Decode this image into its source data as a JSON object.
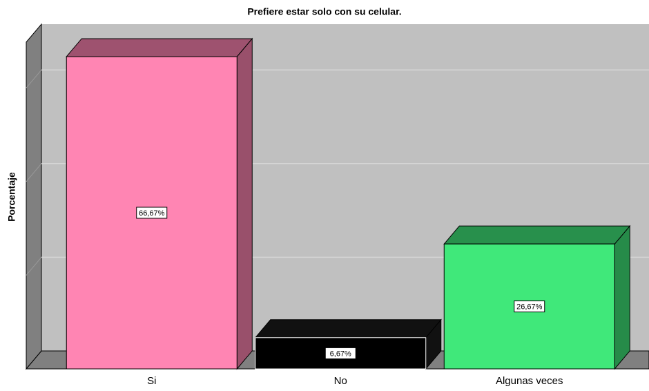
{
  "chart_data": {
    "type": "bar3d",
    "title": "Prefiere estar solo con su celular.",
    "y_label": "Porcentaje",
    "categories": [
      "Si",
      "No",
      "Algunas veces"
    ],
    "values": [
      66.67,
      6.67,
      26.67
    ],
    "value_labels": [
      "66,67%",
      "6,67%",
      "26,67%"
    ],
    "colors": [
      "#ff85b3",
      "#000000",
      "#40e87a"
    ],
    "ylim": [
      0,
      70
    ],
    "yticks": [
      0,
      20,
      40,
      60
    ],
    "grid": true
  }
}
